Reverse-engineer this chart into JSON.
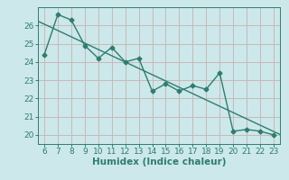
{
  "x": [
    6,
    7,
    8,
    9,
    10,
    11,
    12,
    13,
    14,
    15,
    16,
    17,
    18,
    19,
    20,
    21,
    22,
    23
  ],
  "y": [
    24.4,
    26.6,
    26.3,
    24.9,
    24.2,
    24.8,
    24.0,
    24.2,
    22.4,
    22.8,
    22.4,
    22.7,
    22.5,
    23.4,
    20.2,
    20.3,
    20.2,
    20.0
  ],
  "line_color": "#2e7d6e",
  "bg_color": "#cce8ea",
  "grid_color": "#c8b8b8",
  "xlabel": "Humidex (Indice chaleur)",
  "xlim": [
    5.5,
    23.5
  ],
  "ylim": [
    19.5,
    27.0
  ],
  "yticks": [
    20,
    21,
    22,
    23,
    24,
    25,
    26
  ],
  "xticks": [
    6,
    7,
    8,
    9,
    10,
    11,
    12,
    13,
    14,
    15,
    16,
    17,
    18,
    19,
    20,
    21,
    22,
    23
  ],
  "trend_color": "#2e7d6e",
  "tick_color": "#2e7d6e",
  "label_fontsize": 7.5,
  "tick_fontsize": 6.5
}
